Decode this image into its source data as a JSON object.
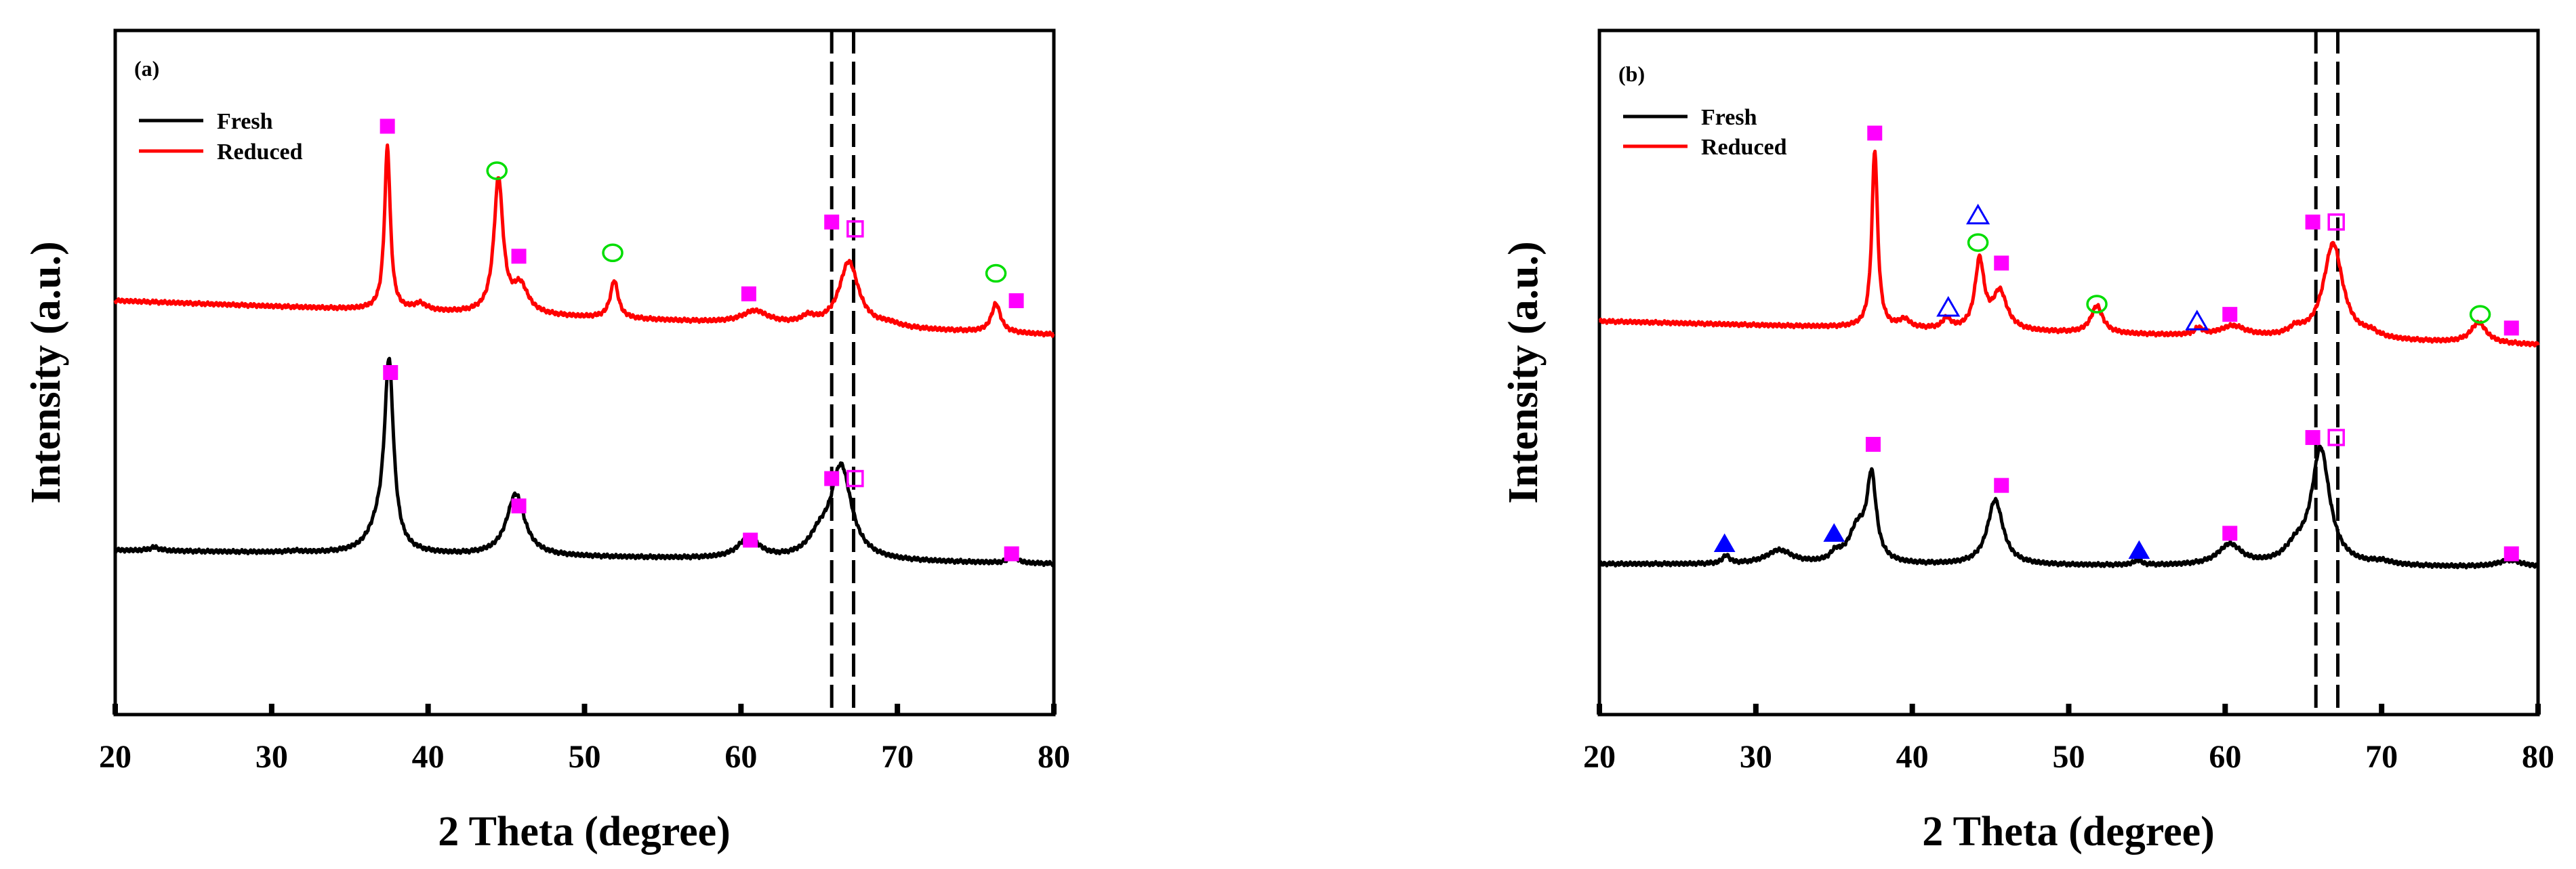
{
  "colors": {
    "fresh": "#000000",
    "reduced": "#ff0000",
    "square": "#ff00ff",
    "circle": "#00dd00",
    "triangle": "#0000ff"
  },
  "chart_data": [
    {
      "type": "line",
      "panel_label": "(a)",
      "xlabel": "2 Theta (degree)",
      "ylabel": "Intensity (a.u.)",
      "xlim": [
        20,
        80
      ],
      "ylim": [
        0,
        10
      ],
      "xticks": [
        20,
        30,
        40,
        50,
        60,
        70,
        80
      ],
      "xtick_labels": [
        "20",
        "30",
        "40",
        "50",
        "60",
        "70",
        "80"
      ],
      "dashed_lines_x": [
        65.8,
        67.2
      ],
      "legend": [
        {
          "name": "Fresh",
          "series": "fresh"
        },
        {
          "name": "Reduced",
          "series": "reduced"
        }
      ],
      "series": [
        {
          "name": "Fresh",
          "key": "fresh",
          "baseline": 2.35,
          "slope_start": 0.05,
          "slope_end": -0.15,
          "peaks": [
            [
              22.5,
              0.05,
              0.4
            ],
            [
              31.5,
              0.02,
              0.6
            ],
            [
              36.8,
              0.3,
              0.8
            ],
            [
              37.5,
              2.7,
              0.35
            ],
            [
              45.6,
              0.9,
              0.7
            ],
            [
              60.5,
              0.3,
              0.8
            ],
            [
              65.0,
              0.25,
              0.8
            ],
            [
              66.4,
              1.35,
              0.8
            ],
            [
              77.4,
              0.15,
              0.25
            ]
          ]
        },
        {
          "name": "Reduced",
          "key": "reduced",
          "baseline": 6.05,
          "slope_start": 0.0,
          "slope_end": -0.5,
          "peaks": [
            [
              37.4,
              2.4,
              0.22
            ],
            [
              39.5,
              0.1,
              0.5
            ],
            [
              44.5,
              1.95,
              0.35
            ],
            [
              45.9,
              0.4,
              0.6
            ],
            [
              51.9,
              0.55,
              0.3
            ],
            [
              60.9,
              0.18,
              1.0
            ],
            [
              64.3,
              0.1,
              0.5
            ],
            [
              66.9,
              0.95,
              0.75
            ],
            [
              69.5,
              0.05,
              0.8
            ],
            [
              76.3,
              0.42,
              0.35
            ]
          ]
        }
      ],
      "markers": [
        {
          "x": 37.4,
          "y": 8.6,
          "symbol": "filled-square"
        },
        {
          "x": 44.4,
          "y": 7.95,
          "symbol": "open-circle"
        },
        {
          "x": 45.8,
          "y": 6.7,
          "symbol": "filled-square"
        },
        {
          "x": 51.8,
          "y": 6.75,
          "symbol": "open-circle"
        },
        {
          "x": 60.5,
          "y": 6.15,
          "symbol": "filled-square"
        },
        {
          "x": 65.8,
          "y": 7.2,
          "symbol": "filled-square"
        },
        {
          "x": 67.3,
          "y": 7.1,
          "symbol": "open-square"
        },
        {
          "x": 76.3,
          "y": 6.45,
          "symbol": "open-circle"
        },
        {
          "x": 77.6,
          "y": 6.05,
          "symbol": "filled-square"
        },
        {
          "x": 37.6,
          "y": 5.0,
          "symbol": "filled-square"
        },
        {
          "x": 45.8,
          "y": 3.05,
          "symbol": "filled-square"
        },
        {
          "x": 60.6,
          "y": 2.55,
          "symbol": "filled-square"
        },
        {
          "x": 65.8,
          "y": 3.45,
          "symbol": "filled-square"
        },
        {
          "x": 67.3,
          "y": 3.45,
          "symbol": "open-square"
        },
        {
          "x": 77.3,
          "y": 2.35,
          "symbol": "filled-square"
        }
      ]
    },
    {
      "type": "line",
      "panel_label": "(b)",
      "xlabel": "2 Theta (degree)",
      "ylabel": "Intensity (a.u.)",
      "xlim": [
        20,
        80
      ],
      "ylim": [
        0,
        10
      ],
      "xticks": [
        20,
        30,
        40,
        50,
        60,
        70,
        80
      ],
      "xtick_labels": [
        "20",
        "30",
        "40",
        "50",
        "60",
        "70",
        "80"
      ],
      "dashed_lines_x": [
        65.8,
        67.2
      ],
      "legend": [
        {
          "name": "Fresh",
          "series": "fresh"
        },
        {
          "name": "Reduced",
          "series": "reduced"
        }
      ],
      "series": [
        {
          "name": "Fresh",
          "key": "fresh",
          "baseline": 2.2,
          "slope_start": 0.0,
          "slope_end": -0.05,
          "peaks": [
            [
              28.1,
              0.12,
              0.25
            ],
            [
              31.5,
              0.2,
              1.0
            ],
            [
              35.1,
              0.12,
              0.35
            ],
            [
              36.5,
              0.5,
              0.7
            ],
            [
              37.4,
              1.2,
              0.35
            ],
            [
              45.3,
              0.95,
              0.6
            ],
            [
              54.4,
              0.07,
              0.3
            ],
            [
              60.3,
              0.3,
              0.9
            ],
            [
              64.5,
              0.2,
              0.8
            ],
            [
              66.1,
              1.7,
              0.7
            ],
            [
              70.0,
              0.05,
              0.8
            ],
            [
              78.2,
              0.1,
              0.9
            ]
          ]
        },
        {
          "name": "Reduced",
          "key": "reduced",
          "baseline": 5.75,
          "slope_start": 0.0,
          "slope_end": -0.35,
          "peaks": [
            [
              37.6,
              2.6,
              0.22
            ],
            [
              39.5,
              0.12,
              0.4
            ],
            [
              42.2,
              0.15,
              0.3
            ],
            [
              44.3,
              1.0,
              0.35
            ],
            [
              45.6,
              0.55,
              0.55
            ],
            [
              51.8,
              0.4,
              0.45
            ],
            [
              58.3,
              0.1,
              0.3
            ],
            [
              60.5,
              0.15,
              1.0
            ],
            [
              64.5,
              0.1,
              0.5
            ],
            [
              66.9,
              1.4,
              0.75
            ],
            [
              69.3,
              0.07,
              0.6
            ],
            [
              76.2,
              0.3,
              0.6
            ]
          ]
        }
      ],
      "markers": [
        {
          "x": 37.6,
          "y": 8.5,
          "symbol": "filled-square"
        },
        {
          "x": 44.2,
          "y": 7.3,
          "symbol": "open-triangle"
        },
        {
          "x": 44.2,
          "y": 6.9,
          "symbol": "open-circle"
        },
        {
          "x": 45.7,
          "y": 6.6,
          "symbol": "filled-square"
        },
        {
          "x": 42.3,
          "y": 5.95,
          "symbol": "open-triangle"
        },
        {
          "x": 51.8,
          "y": 6.0,
          "symbol": "open-circle"
        },
        {
          "x": 58.2,
          "y": 5.75,
          "symbol": "open-triangle"
        },
        {
          "x": 60.3,
          "y": 5.85,
          "symbol": "filled-square"
        },
        {
          "x": 65.6,
          "y": 7.2,
          "symbol": "filled-square"
        },
        {
          "x": 67.1,
          "y": 7.2,
          "symbol": "open-square"
        },
        {
          "x": 76.3,
          "y": 5.85,
          "symbol": "open-circle"
        },
        {
          "x": 78.3,
          "y": 5.65,
          "symbol": "filled-square"
        },
        {
          "x": 28.0,
          "y": 2.5,
          "symbol": "filled-triangle"
        },
        {
          "x": 35.0,
          "y": 2.65,
          "symbol": "filled-triangle"
        },
        {
          "x": 37.5,
          "y": 3.95,
          "symbol": "filled-square"
        },
        {
          "x": 45.7,
          "y": 3.35,
          "symbol": "filled-square"
        },
        {
          "x": 54.5,
          "y": 2.4,
          "symbol": "filled-triangle"
        },
        {
          "x": 60.3,
          "y": 2.65,
          "symbol": "filled-square"
        },
        {
          "x": 65.6,
          "y": 4.05,
          "symbol": "filled-square"
        },
        {
          "x": 67.1,
          "y": 4.05,
          "symbol": "open-square"
        },
        {
          "x": 78.3,
          "y": 2.35,
          "symbol": "filled-square"
        }
      ]
    }
  ]
}
